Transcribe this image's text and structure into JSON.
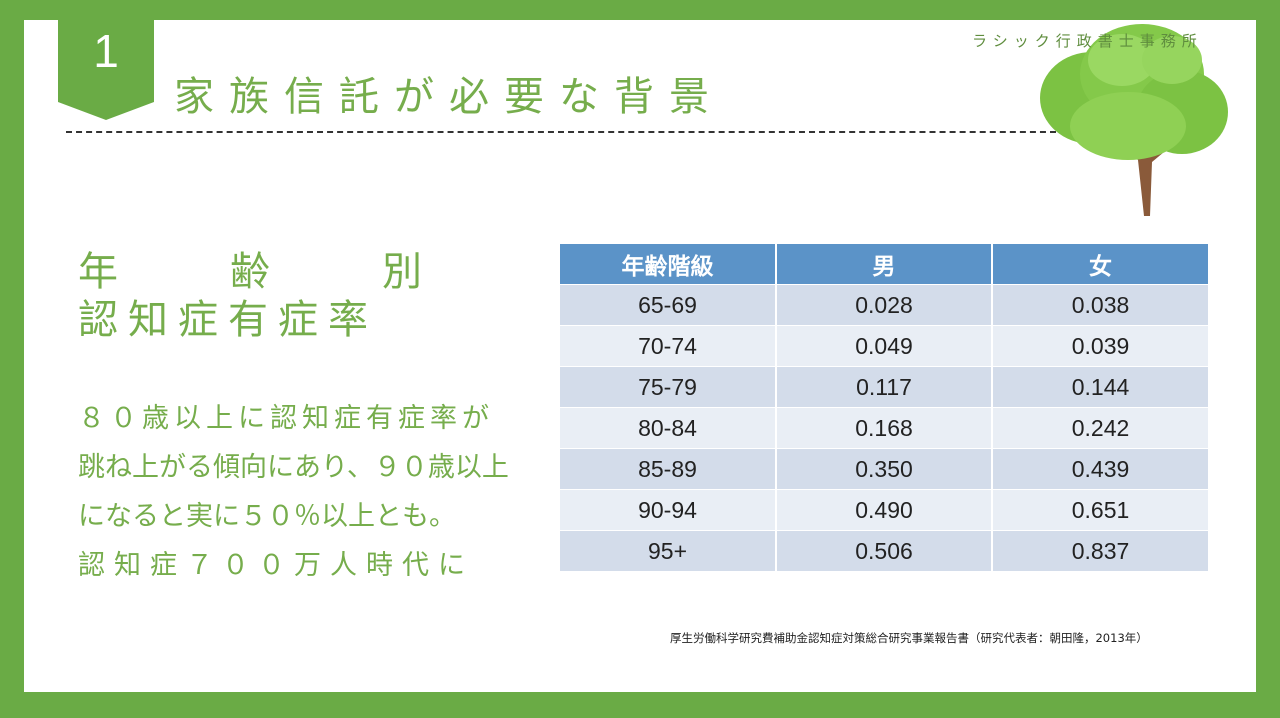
{
  "slide": {
    "number": "1",
    "title": "家族信託が必要な背景",
    "company": "ラシック行政書士事務所"
  },
  "heading": {
    "line1": [
      "年",
      "齢",
      "別"
    ],
    "line2": "認知症有症率"
  },
  "body_lines": [
    "８０歳以上に認知症有症率が",
    "跳ね上がる傾向にあり、９０歳以上",
    "になると実に５０％以上とも。",
    "認知症７００万人時代に"
  ],
  "table": {
    "headers": [
      "年齢階級",
      "男",
      "女"
    ],
    "rows": [
      [
        "65-69",
        "0.028",
        "0.038"
      ],
      [
        "70-74",
        "0.049",
        "0.039"
      ],
      [
        "75-79",
        "0.117",
        "0.144"
      ],
      [
        "80-84",
        "0.168",
        "0.242"
      ],
      [
        "85-89",
        "0.350",
        "0.439"
      ],
      [
        "90-94",
        "0.490",
        "0.651"
      ],
      [
        "95+",
        "0.506",
        "0.837"
      ]
    ]
  },
  "source": "厚生労働科学研究費補助金認知症対策総合研究事業報告書（研究代表者：朝田隆，2013年）",
  "colors": {
    "frame": "#6aab45",
    "accent_text": "#76ad4c",
    "table_header": "#5b93c8",
    "row_dark": "#d3dcea",
    "row_light": "#e9eef5"
  }
}
